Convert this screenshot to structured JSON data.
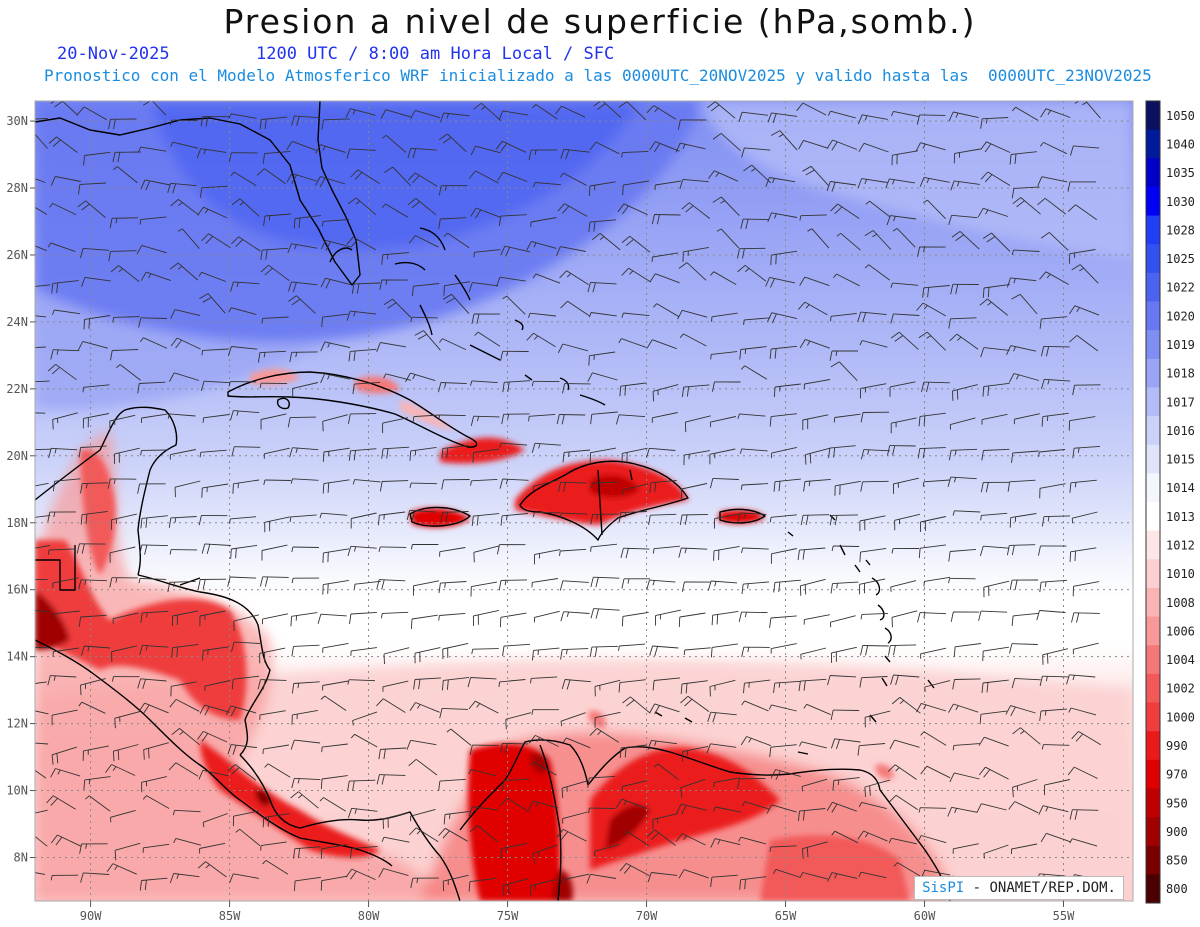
{
  "header": {
    "title": "Presion a nivel de superficie (hPa,somb.)",
    "date": "20-Nov-2025",
    "time_info": "1200 UTC / 8:00 am Hora Local / SFC",
    "subtitle": "Pronostico con el Modelo Atmosferico WRF inicializado a las 0000UTC_20NOV2025 y valido hasta las  0000UTC_23NOV2025"
  },
  "map": {
    "lon_range": [
      -92,
      -52.5
    ],
    "lat_range": [
      6.7,
      30.6
    ],
    "x_ticks": [
      "90W",
      "85W",
      "80W",
      "75W",
      "70W",
      "65W",
      "60W",
      "55W"
    ],
    "x_tick_values": [
      -90,
      -85,
      -80,
      -75,
      -70,
      -65,
      -60,
      -55
    ],
    "y_ticks": [
      "30N",
      "28N",
      "26N",
      "24N",
      "22N",
      "20N",
      "18N",
      "16N",
      "14N",
      "12N",
      "10N",
      "8N"
    ],
    "y_tick_values": [
      30,
      28,
      26,
      24,
      22,
      20,
      18,
      16,
      14,
      12,
      10,
      8
    ],
    "grid": true,
    "wind_barbs": true
  },
  "colorbar": {
    "labels": [
      "1050",
      "1040",
      "1035",
      "1030",
      "1028",
      "1025",
      "1022",
      "1020",
      "1019",
      "1018",
      "1017",
      "1016",
      "1015",
      "1014",
      "1013",
      "1012",
      "1010",
      "1008",
      "1006",
      "1004",
      "1002",
      "1000",
      "990",
      "970",
      "950",
      "900",
      "850",
      "800"
    ],
    "colors": [
      "#0c1060",
      "#001a9c",
      "#0000c8",
      "#0000f5",
      "#1f3ef5",
      "#3350f0",
      "#4c63f0",
      "#6678f2",
      "#7f8ef3",
      "#9aa5f5",
      "#b3bcf7",
      "#cbd2f9",
      "#e0e4fb",
      "#f4f6fe",
      "#ffffff",
      "#fde6e6",
      "#fcd0d0",
      "#fab4b4",
      "#f89898",
      "#f57878",
      "#f25a5a",
      "#ef3c3c",
      "#eb1a1a",
      "#e00000",
      "#c00000",
      "#a00000",
      "#7a0000",
      "#4a0000"
    ]
  },
  "credit": {
    "brand": "SisPI",
    "text": " - ONAMET/REP.DOM."
  }
}
